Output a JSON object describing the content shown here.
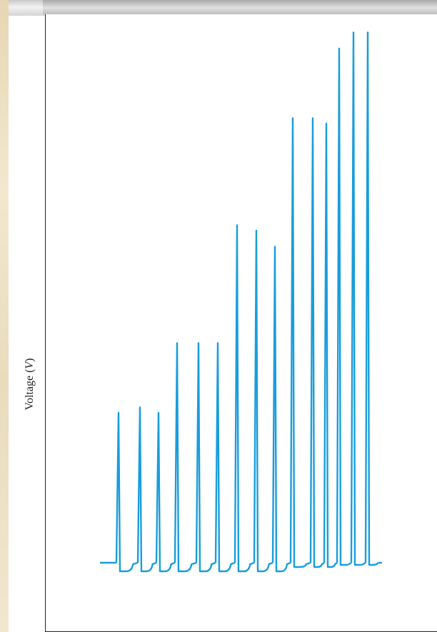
{
  "chart_data": {
    "type": "line",
    "ylabel_prefix": "Voltage (",
    "ylabel_var": "V",
    "ylabel_suffix": ")",
    "line_color": "#199ddc",
    "baseline": 0,
    "spikes": [
      {
        "peak": 0.28
      },
      {
        "peak": 0.29
      },
      {
        "peak": 0.28
      },
      {
        "peak": 0.41
      },
      {
        "peak": 0.41
      },
      {
        "peak": 0.41
      },
      {
        "peak": 0.63
      },
      {
        "peak": 0.62
      },
      {
        "peak": 0.59
      },
      {
        "peak": 0.83
      },
      {
        "peak": 0.83
      },
      {
        "peak": 0.82
      },
      {
        "peak": 0.96
      },
      {
        "peak": 0.99
      },
      {
        "peak": 0.99
      }
    ]
  }
}
